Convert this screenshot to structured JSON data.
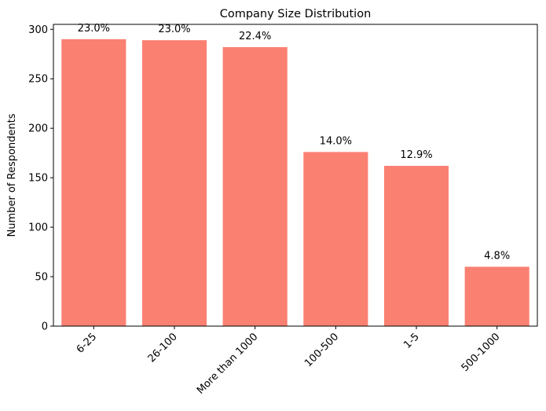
{
  "chart_data": {
    "type": "bar",
    "title": "Company Size Distribution",
    "xlabel": "",
    "ylabel": "Number of Respondents",
    "categories": [
      "6-25",
      "26-100",
      "More than 1000",
      "100-500",
      "1-5",
      "500-1000"
    ],
    "values": [
      290,
      289,
      282,
      176,
      162,
      60
    ],
    "data_labels": [
      "23.0%",
      "23.0%",
      "22.4%",
      "14.0%",
      "12.9%",
      "4.8%"
    ],
    "ylim": [
      0,
      305
    ],
    "yticks": [
      0,
      50,
      100,
      150,
      200,
      250,
      300
    ],
    "x_tick_rotation": 45,
    "bar_color": "#FA8072",
    "grid": false,
    "legend": "none"
  }
}
